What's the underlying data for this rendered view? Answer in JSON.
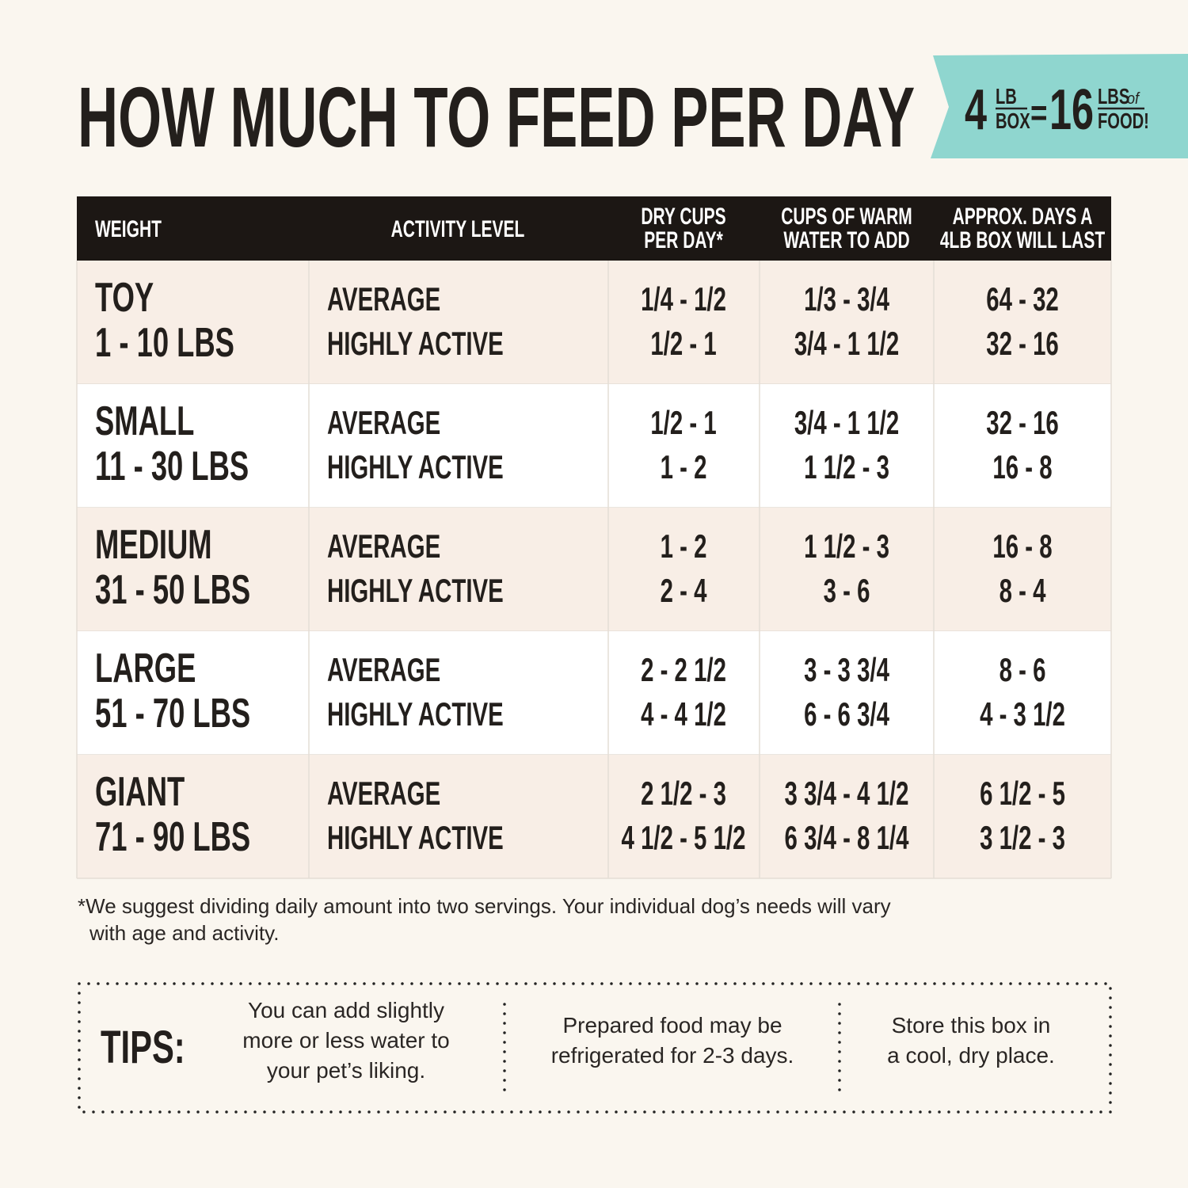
{
  "title": "HOW MUCH TO FEED PER DAY",
  "badge": {
    "box_number": "4",
    "box_unit_top": "LB",
    "box_unit_bottom": "BOX",
    "equals": "=",
    "food_number": "16",
    "food_unit_top": "LBS",
    "food_of": "of",
    "food_unit_bottom": "FOOD!"
  },
  "table": {
    "headers": [
      [
        "WEIGHT"
      ],
      [
        "ACTIVITY LEVEL"
      ],
      [
        "DRY CUPS",
        "PER DAY*"
      ],
      [
        "CUPS OF WARM",
        "WATER TO ADD"
      ],
      [
        "APPROX. DAYS A",
        "4LB BOX WILL LAST"
      ]
    ],
    "rows": [
      {
        "size": "TOY",
        "weight": "1 - 10 LBS",
        "levels": [
          "AVERAGE",
          "HIGHLY ACTIVE"
        ],
        "dry": [
          "1/4 - 1/2",
          "1/2 - 1"
        ],
        "water": [
          "1/3 - 3/4",
          "3/4 - 1 1/2"
        ],
        "days": [
          "64 - 32",
          "32 - 16"
        ]
      },
      {
        "size": "SMALL",
        "weight": "11 - 30 LBS",
        "levels": [
          "AVERAGE",
          "HIGHLY ACTIVE"
        ],
        "dry": [
          "1/2 - 1",
          "1 - 2"
        ],
        "water": [
          "3/4 - 1 1/2",
          "1 1/2 - 3"
        ],
        "days": [
          "32 - 16",
          "16 - 8"
        ]
      },
      {
        "size": "MEDIUM",
        "weight": "31 - 50 LBS",
        "levels": [
          "AVERAGE",
          "HIGHLY ACTIVE"
        ],
        "dry": [
          "1 - 2",
          "2 - 4"
        ],
        "water": [
          "1 1/2 - 3",
          "3 - 6"
        ],
        "days": [
          "16 - 8",
          "8 - 4"
        ]
      },
      {
        "size": "LARGE",
        "weight": "51 - 70 LBS",
        "levels": [
          "AVERAGE",
          "HIGHLY ACTIVE"
        ],
        "dry": [
          "2 - 2 1/2",
          "4 - 4 1/2"
        ],
        "water": [
          "3 - 3 3/4",
          "6 - 6 3/4"
        ],
        "days": [
          "8 - 6",
          "4 - 3 1/2"
        ]
      },
      {
        "size": "GIANT",
        "weight": "71 - 90 LBS",
        "levels": [
          "AVERAGE",
          "HIGHLY ACTIVE"
        ],
        "dry": [
          "2 1/2 - 3",
          "4 1/2 - 5 1/2"
        ],
        "water": [
          "3 3/4 - 4 1/2",
          "6 3/4 - 8 1/4"
        ],
        "days": [
          "6 1/2 - 5",
          "3 1/2 - 3"
        ]
      }
    ]
  },
  "footnote": [
    "*We suggest dividing daily amount into two servings. Your individual dog’s needs will vary",
    "with age and activity."
  ],
  "tips": {
    "label": "TIPS:",
    "items": [
      [
        "You can add slightly",
        "more or less water to",
        "your pet’s liking."
      ],
      [
        "Prepared food may be",
        "refrigerated for 2-3 days."
      ],
      [
        "Store this box in",
        "a cool, dry place."
      ]
    ]
  }
}
